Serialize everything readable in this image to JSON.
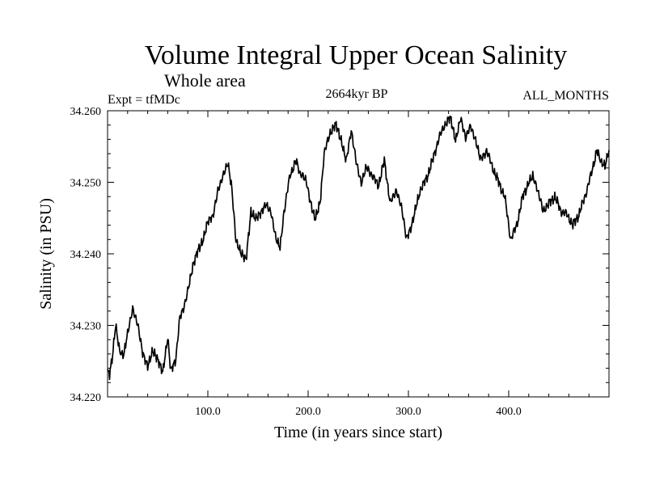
{
  "chart_data": {
    "type": "line",
    "title": "Volume Integral Upper Ocean Salinity",
    "subtitle": "Whole area",
    "experiment_label": "Expt = tfMDc",
    "period_label": "2664kyr BP",
    "months_label": "ALL_MONTHS",
    "xlabel": "Time (in years since start)",
    "ylabel": "Salinity (in PSU)",
    "xlim": [
      0,
      500
    ],
    "ylim": [
      34.22,
      34.26
    ],
    "x_ticks": [
      100,
      200,
      300,
      400
    ],
    "x_tick_labels": [
      "100.0",
      "200.0",
      "300.0",
      "400.0"
    ],
    "y_ticks": [
      34.22,
      34.23,
      34.24,
      34.25,
      34.26
    ],
    "y_tick_labels": [
      "34.220",
      "34.230",
      "34.240",
      "34.250",
      "34.260"
    ],
    "series": [
      {
        "name": "Salinity",
        "color": "#000000",
        "x": [
          0,
          2,
          5,
          8,
          12,
          16,
          20,
          25,
          30,
          35,
          40,
          45,
          50,
          55,
          60,
          63,
          68,
          72,
          78,
          85,
          90,
          95,
          100,
          105,
          110,
          115,
          120,
          124,
          128,
          133,
          138,
          143,
          148,
          153,
          158,
          163,
          168,
          172,
          176,
          182,
          188,
          192,
          198,
          202,
          207,
          212,
          216,
          222,
          228,
          233,
          238,
          243,
          248,
          253,
          258,
          264,
          270,
          276,
          282,
          288,
          293,
          298,
          303,
          308,
          312,
          318,
          324,
          330,
          336,
          342,
          347,
          352,
          357,
          362,
          367,
          372,
          378,
          384,
          390,
          396,
          402,
          408,
          414,
          420,
          424,
          428,
          434,
          440,
          446,
          452,
          458,
          464,
          470,
          476,
          482,
          488,
          492,
          496,
          500
        ],
        "values": [
          34.2235,
          34.223,
          34.226,
          34.23,
          34.2265,
          34.226,
          34.229,
          34.2325,
          34.23,
          34.226,
          34.2245,
          34.2265,
          34.225,
          34.2235,
          34.2285,
          34.2235,
          34.225,
          34.231,
          34.2335,
          34.238,
          34.2405,
          34.242,
          34.2445,
          34.245,
          34.249,
          34.251,
          34.2525,
          34.249,
          34.242,
          34.24,
          34.239,
          34.246,
          34.245,
          34.2455,
          34.247,
          34.246,
          34.242,
          34.241,
          34.246,
          34.251,
          34.253,
          34.251,
          34.2505,
          34.2475,
          34.245,
          34.247,
          34.254,
          34.257,
          34.258,
          34.256,
          34.253,
          34.257,
          34.253,
          34.25,
          34.252,
          34.251,
          34.2495,
          34.253,
          34.247,
          34.249,
          34.2465,
          34.242,
          34.244,
          34.247,
          34.249,
          34.2505,
          34.253,
          34.256,
          34.258,
          34.259,
          34.256,
          34.259,
          34.256,
          34.258,
          34.256,
          34.253,
          34.2545,
          34.252,
          34.25,
          34.248,
          34.242,
          34.244,
          34.248,
          34.25,
          34.251,
          34.2495,
          34.246,
          34.247,
          34.248,
          34.246,
          34.2455,
          34.244,
          34.2455,
          34.248,
          34.251,
          34.2545,
          34.253,
          34.2525,
          34.2545
        ]
      }
    ]
  }
}
